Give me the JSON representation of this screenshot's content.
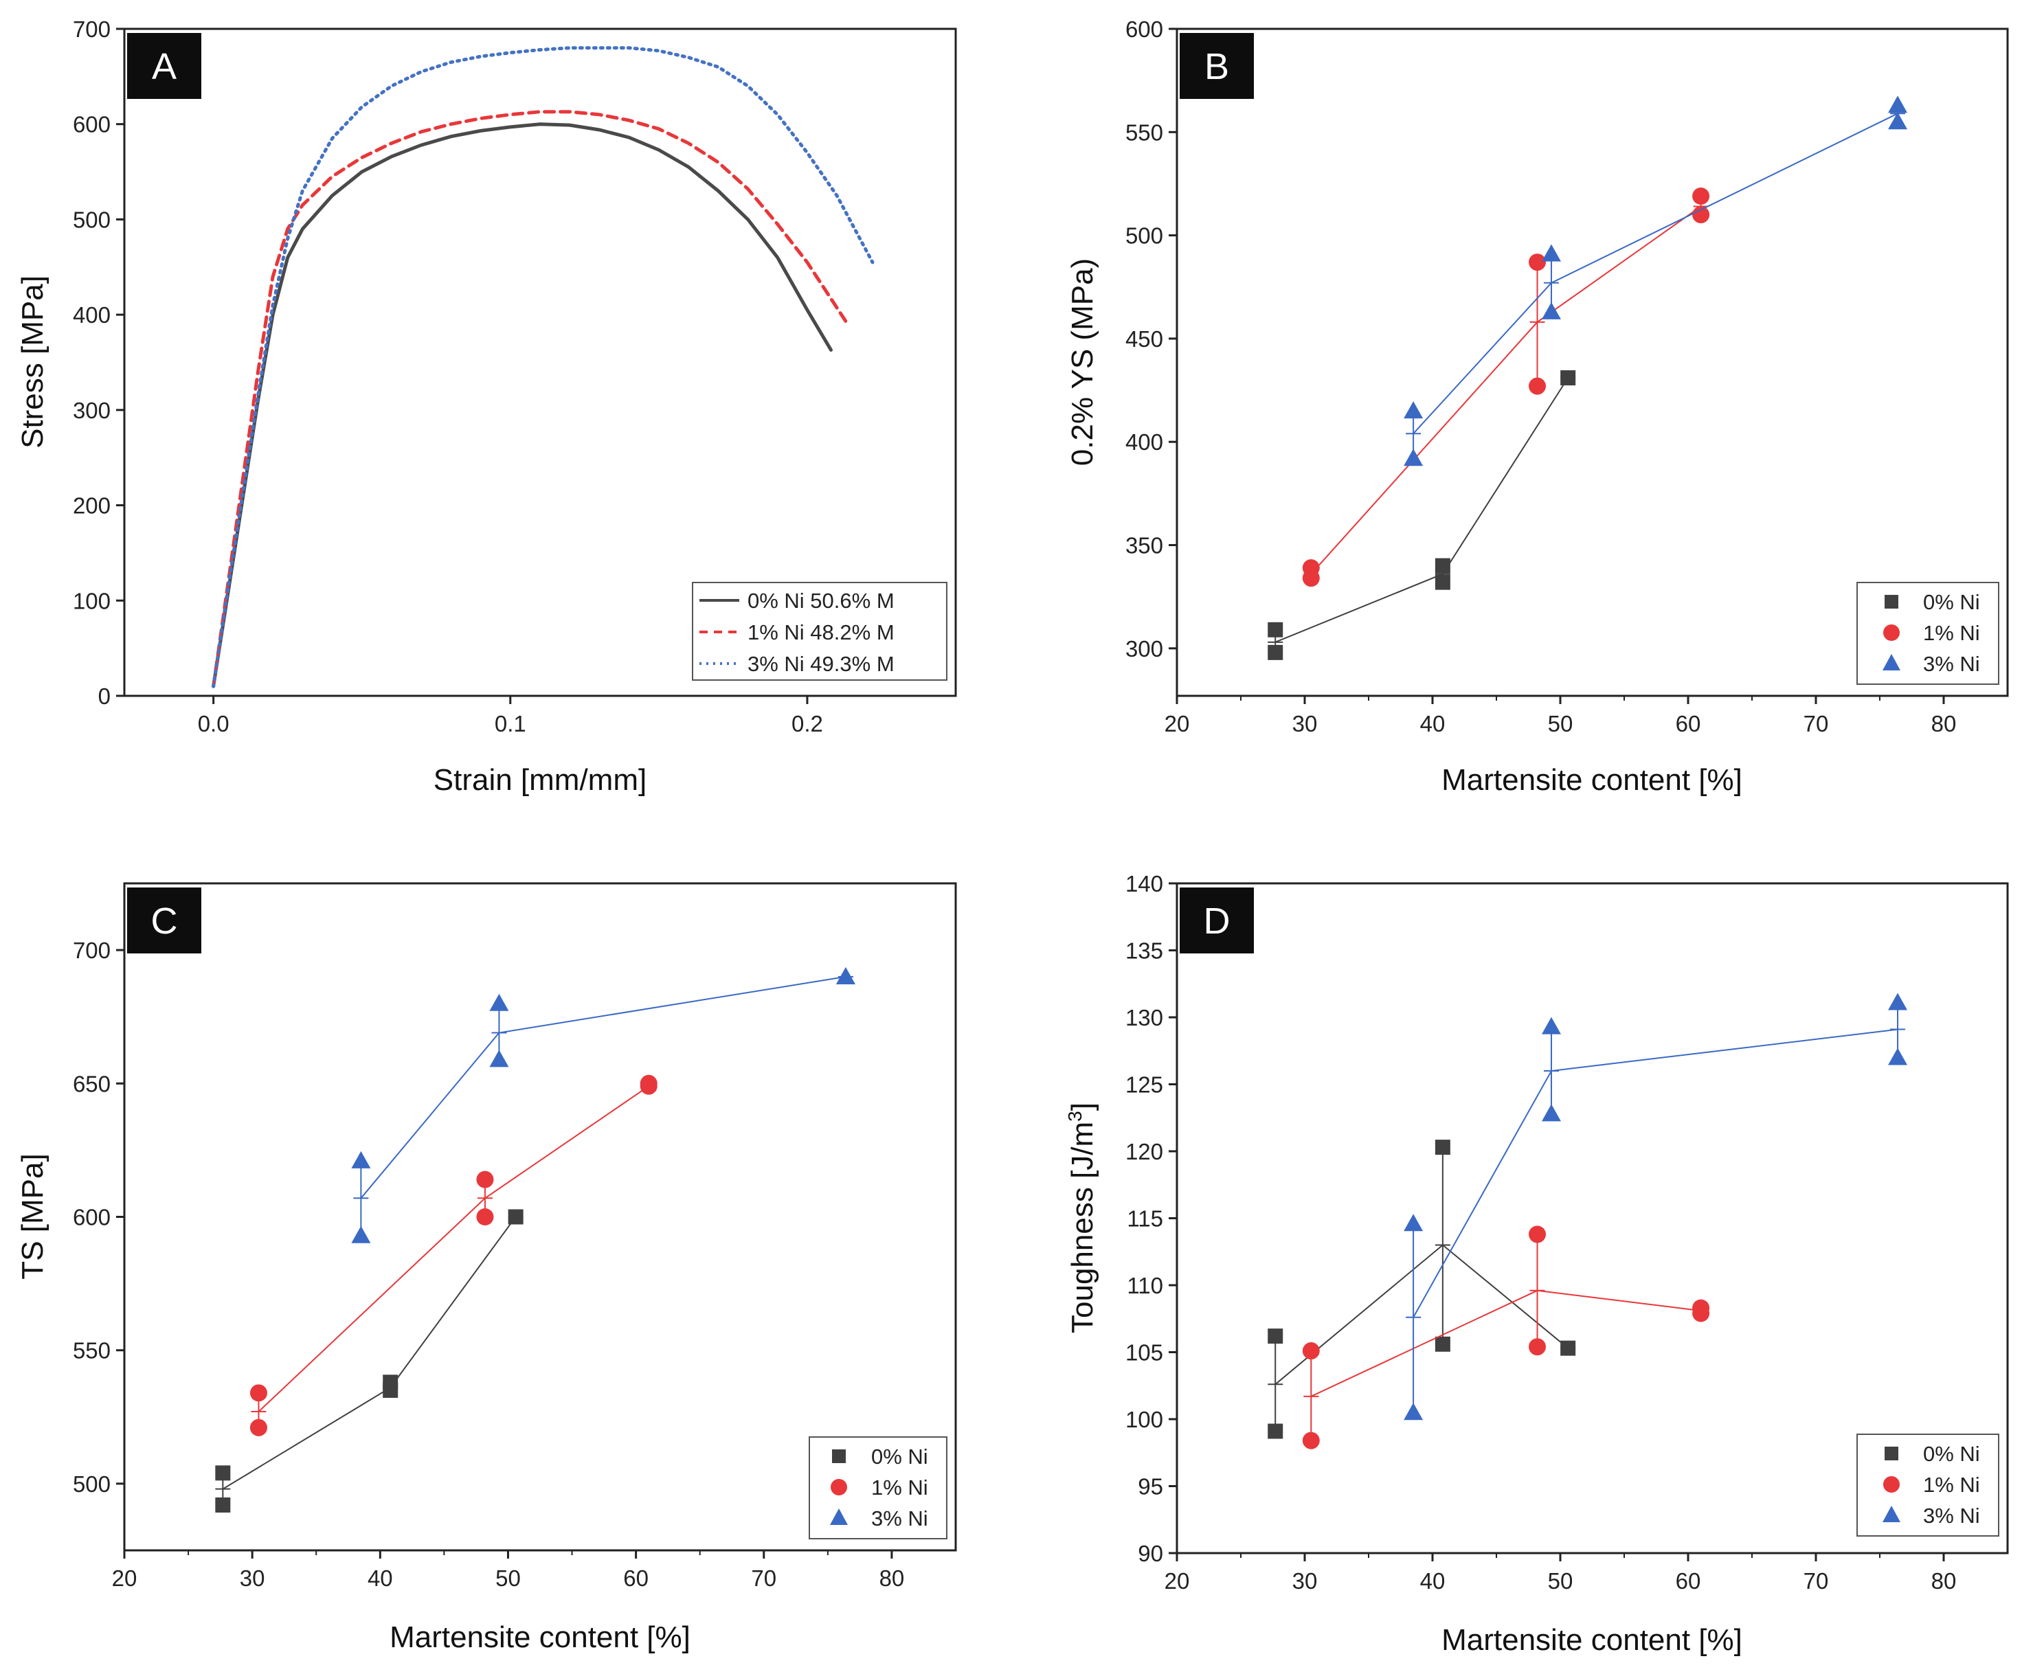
{
  "chart_data": [
    {
      "panel": "A",
      "type": "line",
      "xlabel": "Strain [mm/mm]",
      "ylabel": "Stress [MPa]",
      "xlim": [
        -0.03,
        0.25
      ],
      "ylim": [
        0,
        700
      ],
      "xticks": [
        0.0,
        0.1,
        0.2
      ],
      "xtick_labels": [
        "0.0",
        "0.1",
        "0.2"
      ],
      "yticks": [
        0,
        100,
        200,
        300,
        400,
        500,
        600,
        700
      ],
      "legend_position": "bottom-right",
      "series": [
        {
          "name": "0% Ni 50.6% M",
          "color": "#4a4a4a",
          "dash": "solid",
          "x": [
            0.0,
            0.005,
            0.01,
            0.015,
            0.02,
            0.025,
            0.03,
            0.04,
            0.05,
            0.06,
            0.07,
            0.08,
            0.09,
            0.1,
            0.11,
            0.12,
            0.13,
            0.14,
            0.15,
            0.16,
            0.17,
            0.18,
            0.19,
            0.2,
            0.208
          ],
          "y": [
            10,
            110,
            210,
            310,
            400,
            460,
            490,
            525,
            550,
            566,
            578,
            587,
            593,
            597,
            600,
            599,
            594,
            586,
            573,
            555,
            530,
            500,
            460,
            405,
            363
          ]
        },
        {
          "name": "1% Ni 48.2% M",
          "color": "#e8373a",
          "dash": "dashed",
          "x": [
            0.0,
            0.005,
            0.01,
            0.015,
            0.02,
            0.025,
            0.03,
            0.04,
            0.05,
            0.06,
            0.07,
            0.08,
            0.09,
            0.1,
            0.11,
            0.12,
            0.13,
            0.14,
            0.15,
            0.16,
            0.17,
            0.18,
            0.19,
            0.2,
            0.213
          ],
          "y": [
            10,
            120,
            230,
            340,
            440,
            490,
            515,
            545,
            565,
            580,
            592,
            600,
            606,
            610,
            613,
            613,
            610,
            604,
            595,
            580,
            560,
            532,
            495,
            455,
            393
          ]
        },
        {
          "name": "3% Ni 49.3% M",
          "color": "#4472c4",
          "dash": "dotted",
          "x": [
            0.0,
            0.005,
            0.01,
            0.015,
            0.02,
            0.025,
            0.03,
            0.04,
            0.05,
            0.06,
            0.07,
            0.08,
            0.09,
            0.1,
            0.11,
            0.12,
            0.13,
            0.14,
            0.15,
            0.16,
            0.17,
            0.18,
            0.19,
            0.2,
            0.21,
            0.222
          ],
          "y": [
            10,
            115,
            215,
            315,
            410,
            480,
            530,
            585,
            618,
            640,
            655,
            665,
            671,
            675,
            678,
            680,
            680,
            680,
            677,
            670,
            660,
            640,
            610,
            570,
            525,
            455
          ]
        }
      ]
    },
    {
      "panel": "B",
      "type": "scatter",
      "xlabel": "Martensite content [%]",
      "ylabel": "0.2% YS (MPa)",
      "xlim": [
        20,
        85
      ],
      "ylim": [
        277,
        600
      ],
      "xticks": [
        20,
        30,
        40,
        50,
        60,
        70,
        80
      ],
      "yticks": [
        300,
        350,
        400,
        450,
        500,
        550,
        600
      ],
      "legend_position": "bottom-right",
      "series": [
        {
          "name": "0% Ni",
          "color": "#404040",
          "marker": "square",
          "points": [
            [
              27.7,
              309
            ],
            [
              27.7,
              298
            ],
            [
              40.8,
              340
            ],
            [
              40.8,
              332
            ],
            [
              50.6,
              431
            ]
          ],
          "means": [
            [
              27.7,
              303
            ],
            [
              40.8,
              336
            ],
            [
              50.6,
              431
            ]
          ],
          "err_lo": [
            298,
            332,
            431
          ],
          "err_hi": [
            309,
            340,
            431
          ]
        },
        {
          "name": "1% Ni",
          "color": "#e8373a",
          "marker": "circle",
          "points": [
            [
              30.5,
              339
            ],
            [
              30.5,
              334
            ],
            [
              48.2,
              487
            ],
            [
              48.2,
              427
            ],
            [
              61,
              519
            ],
            [
              61,
              510
            ]
          ],
          "means": [
            [
              30.5,
              336
            ],
            [
              48.2,
              458
            ],
            [
              61,
              514
            ]
          ],
          "err_lo": [
            334,
            427,
            510
          ],
          "err_hi": [
            339,
            487,
            519
          ]
        },
        {
          "name": "3% Ni",
          "color": "#3a69c4",
          "marker": "triangle",
          "points": [
            [
              38.5,
              415
            ],
            [
              38.5,
              392
            ],
            [
              49.3,
              491
            ],
            [
              49.3,
              463
            ],
            [
              76.4,
              563
            ],
            [
              76.4,
              555
            ]
          ],
          "means": [
            [
              38.5,
              404
            ],
            [
              49.3,
              477
            ],
            [
              76.4,
              559
            ]
          ],
          "err_lo": [
            392,
            463,
            555
          ],
          "err_hi": [
            415,
            491,
            563
          ]
        }
      ]
    },
    {
      "panel": "C",
      "type": "scatter",
      "xlabel": "Martensite content [%]",
      "ylabel": "TS [MPa]",
      "xlim": [
        20,
        85
      ],
      "ylim": [
        475,
        725
      ],
      "xticks": [
        20,
        30,
        40,
        50,
        60,
        70,
        80
      ],
      "yticks": [
        500,
        550,
        600,
        650,
        700
      ],
      "legend_position": "bottom-right",
      "series": [
        {
          "name": "0% Ni",
          "color": "#404040",
          "marker": "square",
          "points": [
            [
              27.7,
              504
            ],
            [
              27.7,
              492
            ],
            [
              40.8,
              538
            ],
            [
              40.8,
              535
            ],
            [
              50.6,
              600
            ]
          ],
          "means": [
            [
              27.7,
              498
            ],
            [
              40.8,
              536
            ],
            [
              50.6,
              600
            ]
          ],
          "err_lo": [
            492,
            535,
            600
          ],
          "err_hi": [
            504,
            538,
            600
          ]
        },
        {
          "name": "1% Ni",
          "color": "#e8373a",
          "marker": "circle",
          "points": [
            [
              30.5,
              534
            ],
            [
              30.5,
              521
            ],
            [
              48.2,
              614
            ],
            [
              48.2,
              600
            ],
            [
              61,
              650
            ],
            [
              61,
              649
            ]
          ],
          "means": [
            [
              30.5,
              527
            ],
            [
              48.2,
              607
            ],
            [
              61,
              649
            ]
          ],
          "err_lo": [
            521,
            600,
            649
          ],
          "err_hi": [
            534,
            614,
            650
          ]
        },
        {
          "name": "3% Ni",
          "color": "#3a69c4",
          "marker": "triangle",
          "points": [
            [
              38.5,
              621
            ],
            [
              38.5,
              593
            ],
            [
              49.3,
              680
            ],
            [
              49.3,
              659
            ],
            [
              76.4,
              690
            ],
            [
              76.4,
              690
            ]
          ],
          "means": [
            [
              38.5,
              607
            ],
            [
              49.3,
              669
            ],
            [
              76.4,
              690
            ]
          ],
          "err_lo": [
            593,
            659,
            690
          ],
          "err_hi": [
            621,
            680,
            690
          ]
        }
      ]
    },
    {
      "panel": "D",
      "type": "scatter",
      "xlabel": "Martensite content [%]",
      "ylabel": "Toughness [J/m",
      "ylabel_superscript": "3",
      "ylabel_close": "]",
      "xlim": [
        20,
        85
      ],
      "ylim": [
        90,
        140
      ],
      "xticks": [
        20,
        30,
        40,
        50,
        60,
        70,
        80
      ],
      "yticks": [
        90,
        95,
        100,
        105,
        110,
        115,
        120,
        125,
        130,
        135,
        140
      ],
      "legend_position": "bottom-right",
      "series": [
        {
          "name": "0% Ni",
          "color": "#404040",
          "marker": "square",
          "points": [
            [
              27.7,
              106.2
            ],
            [
              27.7,
              99.1
            ],
            [
              40.8,
              120.3
            ],
            [
              40.8,
              105.6
            ],
            [
              50.6,
              105.3
            ]
          ],
          "means": [
            [
              27.7,
              102.6
            ],
            [
              40.8,
              113
            ],
            [
              50.6,
              105.3
            ]
          ],
          "err_lo": [
            99.1,
            105.6,
            105.3
          ],
          "err_hi": [
            106.2,
            120.3,
            105.3
          ]
        },
        {
          "name": "1% Ni",
          "color": "#e8373a",
          "marker": "circle",
          "points": [
            [
              30.5,
              105.1
            ],
            [
              30.5,
              98.4
            ],
            [
              48.2,
              113.8
            ],
            [
              48.2,
              105.4
            ],
            [
              61,
              108.3
            ],
            [
              61,
              107.9
            ]
          ],
          "means": [
            [
              30.5,
              101.7
            ],
            [
              48.2,
              109.6
            ],
            [
              61,
              108.1
            ]
          ],
          "err_lo": [
            98.4,
            105.4,
            107.9
          ],
          "err_hi": [
            105.1,
            113.8,
            108.3
          ]
        },
        {
          "name": "3% Ni",
          "color": "#3a69c4",
          "marker": "triangle",
          "points": [
            [
              38.5,
              114.6
            ],
            [
              38.5,
              100.5
            ],
            [
              49.3,
              129.3
            ],
            [
              49.3,
              122.8
            ],
            [
              76.4,
              131.1
            ],
            [
              76.4,
              127
            ]
          ],
          "means": [
            [
              38.5,
              107.6
            ],
            [
              49.3,
              126
            ],
            [
              76.4,
              129.1
            ]
          ],
          "err_lo": [
            100.5,
            122.8,
            127
          ],
          "err_hi": [
            114.6,
            129.3,
            131.1
          ]
        }
      ]
    }
  ]
}
